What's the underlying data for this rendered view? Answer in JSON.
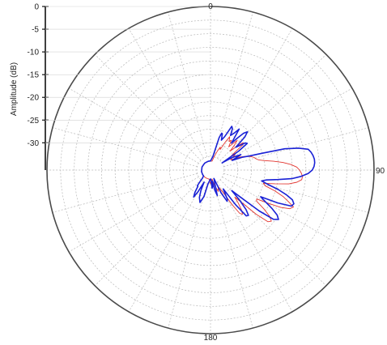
{
  "chart_data": {
    "type": "polar-line",
    "title": "",
    "ylabel": "Amplitude (dB)",
    "angle_ticks": [
      "0",
      "90",
      "180"
    ],
    "angle_unit": "degrees",
    "r_ticks": [
      "0",
      "-5",
      "-10",
      "-15",
      "-20",
      "-25",
      "-30"
    ],
    "rlim": [
      -36,
      0
    ],
    "grid": true,
    "grid_rings": [
      -3,
      -6,
      -9,
      -12,
      -15,
      -18,
      -21,
      -24,
      -27,
      -30,
      -33
    ],
    "spoke_step_deg": 15,
    "series": [
      {
        "color": "#1a22d6",
        "theta": [
          0,
          10,
          15,
          17,
          18,
          20,
          23,
          26,
          28,
          30,
          33,
          35,
          38,
          40,
          42,
          44,
          46,
          48,
          50,
          52,
          54,
          56,
          58,
          60,
          63,
          66,
          68,
          70,
          72,
          74,
          76,
          78,
          80,
          82,
          84,
          86,
          88,
          90,
          92,
          94,
          96,
          98,
          100,
          102,
          104,
          106,
          108,
          110,
          112,
          114,
          116,
          118,
          120,
          122,
          124,
          126,
          128,
          130,
          132,
          134,
          136,
          138,
          140,
          142,
          144,
          146,
          148,
          150,
          152,
          155,
          158,
          160,
          162,
          165,
          168,
          170,
          172,
          175,
          178,
          182,
          186,
          190,
          194,
          198,
          202,
          205,
          208,
          210,
          212,
          215,
          218,
          220,
          222,
          225,
          230,
          240,
          260,
          290,
          320,
          345,
          355
        ],
        "r": [
          -34,
          -33,
          -28.6,
          -27.5,
          -27.6,
          -29,
          -28,
          -25.3,
          -25.7,
          -27.2,
          -26.2,
          -25,
          -28.5,
          -26.8,
          -25.1,
          -24.3,
          -25.5,
          -28.5,
          -27.6,
          -26.3,
          -26,
          -28.5,
          -33,
          -30.5,
          -28.5,
          -30.8,
          -28.5,
          -27,
          -24,
          -19,
          -16,
          -14,
          -13.5,
          -13.2,
          -13,
          -13,
          -13.2,
          -13.6,
          -14.5,
          -16,
          -18,
          -21,
          -23.5,
          -24.5,
          -23,
          -20.5,
          -18.5,
          -16.8,
          -16.2,
          -16.5,
          -19.5,
          -23.5,
          -22,
          -20,
          -18.3,
          -17.5,
          -18.4,
          -22,
          -27,
          -29.5,
          -26.8,
          -24.3,
          -23,
          -23.2,
          -26.5,
          -31,
          -30,
          -28.5,
          -28.2,
          -30.5,
          -34,
          -33.5,
          -33,
          -30.2,
          -31.5,
          -33.5,
          -32.5,
          -32,
          -34,
          -34,
          -33.5,
          -33,
          -30,
          -28.5,
          -29.5,
          -31,
          -33,
          -30.5,
          -29,
          -30,
          -31.5,
          -31.5,
          -32.5,
          -33.5,
          -34,
          -34,
          -34,
          -34,
          -34,
          -34,
          -34
        ]
      },
      {
        "color": "#e2352f",
        "theta": [
          0,
          10,
          15,
          20,
          23,
          25,
          28,
          30,
          33,
          35,
          38,
          40,
          42,
          44,
          46,
          48,
          50,
          52,
          54,
          56,
          58,
          60,
          63,
          66,
          68,
          70,
          72,
          74,
          76,
          78,
          80,
          82,
          84,
          86,
          88,
          90,
          92,
          94,
          96,
          98,
          100,
          102,
          104,
          106,
          108,
          110,
          112,
          114,
          116,
          118,
          120,
          122,
          124,
          126,
          128,
          130,
          132,
          134,
          136,
          138,
          140,
          142,
          144,
          146,
          148,
          150,
          155,
          160,
          165,
          170,
          175,
          180,
          190,
          200,
          210,
          220,
          240,
          270,
          300,
          330,
          350
        ],
        "r": [
          -34,
          -34,
          -33,
          -31.5,
          -30.5,
          -31,
          -29,
          -27.5,
          -28.5,
          -28,
          -29.5,
          -28.5,
          -27.2,
          -28.5,
          -30,
          -28.2,
          -26.6,
          -27,
          -29.5,
          -30.5,
          -29.6,
          -30.5,
          -31,
          -29,
          -28,
          -27.2,
          -26.5,
          -26,
          -25.7,
          -25.2,
          -24,
          -22,
          -20,
          -18.3,
          -17,
          -16.4,
          -16,
          -15.7,
          -15.8,
          -16.8,
          -18.5,
          -21.5,
          -24,
          -23.5,
          -21,
          -19,
          -17.5,
          -16,
          -16.6,
          -18.5,
          -21.5,
          -24,
          -23.8,
          -21.5,
          -19.5,
          -18.5,
          -19,
          -22,
          -26,
          -28,
          -26.5,
          -25,
          -24,
          -24.5,
          -27,
          -30,
          -32,
          -31,
          -32.5,
          -34,
          -33.5,
          -33,
          -34,
          -34,
          -34,
          -34,
          -34,
          -34,
          -34,
          -34,
          -34
        ]
      }
    ]
  }
}
